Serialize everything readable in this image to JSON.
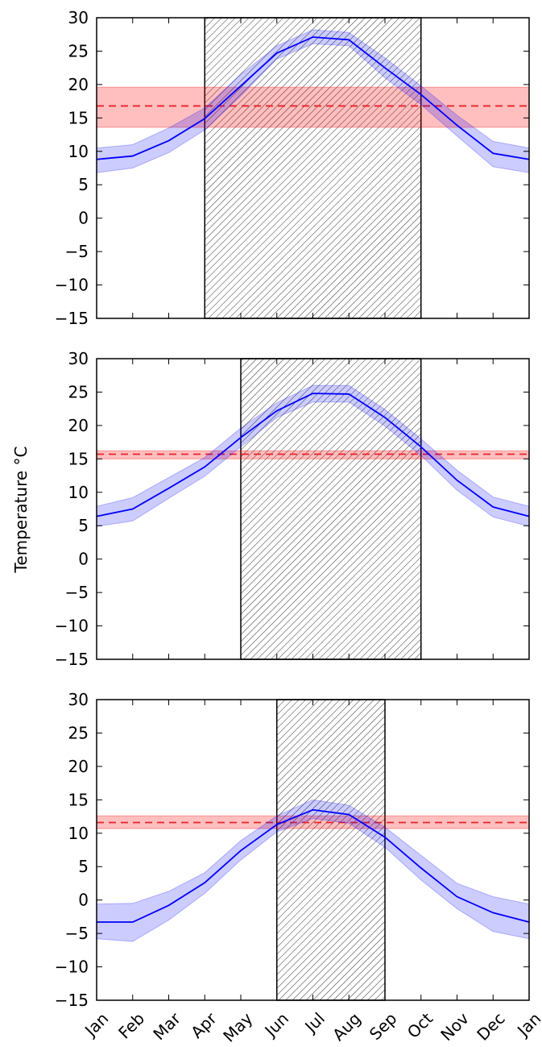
{
  "figure": {
    "ylabel": "Temperature °C"
  },
  "chart_data": [
    {
      "type": "line",
      "ylim": [
        -15,
        30
      ],
      "yticks": [
        30,
        25,
        20,
        15,
        10,
        5,
        0,
        -5,
        -10,
        -15
      ],
      "x": [
        "Jan",
        "Feb",
        "Mar",
        "Apr",
        "May",
        "Jun",
        "Jul",
        "Aug",
        "Sep",
        "Oct",
        "Nov",
        "Dec",
        "Jan"
      ],
      "line": [
        8.8,
        9.3,
        11.6,
        14.9,
        19.8,
        24.7,
        27.1,
        26.7,
        22.5,
        18.5,
        13.9,
        9.7,
        8.8
      ],
      "band_upper": [
        10.5,
        11.0,
        13.5,
        16.5,
        21.5,
        25.8,
        28.2,
        27.8,
        24.0,
        19.8,
        15.4,
        11.5,
        10.5
      ],
      "band_lower": [
        6.8,
        7.5,
        9.8,
        13.2,
        18.3,
        23.8,
        26.1,
        25.8,
        21.0,
        17.0,
        12.3,
        7.7,
        6.8
      ],
      "mean_line": 16.8,
      "mean_band": [
        13.6,
        19.6
      ],
      "shaded_span": [
        "Apr",
        "Oct"
      ],
      "shaded_span_index": [
        3,
        9
      ]
    },
    {
      "type": "line",
      "ylim": [
        -15,
        30
      ],
      "yticks": [
        30,
        25,
        20,
        15,
        10,
        5,
        0,
        -5,
        -10,
        -15
      ],
      "x": [
        "Jan",
        "Feb",
        "Mar",
        "Apr",
        "May",
        "Jun",
        "Jul",
        "Aug",
        "Sep",
        "Oct",
        "Nov",
        "Dec",
        "Jan"
      ],
      "line": [
        6.4,
        7.5,
        10.6,
        13.8,
        18.2,
        22.2,
        24.8,
        24.7,
        21.2,
        16.8,
        11.8,
        7.8,
        6.4
      ],
      "band_upper": [
        7.9,
        9.2,
        12.2,
        15.2,
        19.6,
        23.4,
        26.0,
        26.0,
        22.4,
        18.0,
        13.3,
        9.3,
        7.9
      ],
      "band_lower": [
        4.9,
        5.7,
        9.1,
        12.4,
        16.8,
        21.2,
        23.5,
        23.5,
        19.9,
        15.5,
        10.3,
        6.3,
        4.9
      ],
      "mean_line": 15.7,
      "mean_band": [
        15.0,
        16.2
      ],
      "shaded_span": [
        "May",
        "Oct"
      ],
      "shaded_span_index": [
        4,
        9
      ]
    },
    {
      "type": "line",
      "ylim": [
        -15,
        30
      ],
      "yticks": [
        30,
        25,
        20,
        15,
        10,
        5,
        0,
        -5,
        -10,
        -15
      ],
      "x": [
        "Jan",
        "Feb",
        "Mar",
        "Apr",
        "May",
        "Jun",
        "Jul",
        "Aug",
        "Sep",
        "Oct",
        "Nov",
        "Dec",
        "Jan"
      ],
      "line": [
        -3.3,
        -3.3,
        -0.8,
        2.6,
        7.4,
        11.3,
        13.5,
        12.8,
        9.4,
        4.8,
        0.5,
        -1.9,
        -3.3
      ],
      "band_upper": [
        -0.6,
        -0.5,
        1.3,
        4.1,
        8.9,
        12.6,
        15.0,
        14.2,
        10.9,
        6.7,
        2.5,
        0.5,
        -0.6
      ],
      "band_lower": [
        -5.8,
        -6.2,
        -3.0,
        1.0,
        6.0,
        10.2,
        12.2,
        11.5,
        7.9,
        3.0,
        -1.3,
        -4.7,
        -5.8
      ],
      "mean_line": 11.6,
      "mean_band": [
        10.7,
        12.6
      ],
      "shaded_span": [
        "Jun",
        "Sep"
      ],
      "shaded_span_index": [
        5,
        8
      ]
    }
  ]
}
